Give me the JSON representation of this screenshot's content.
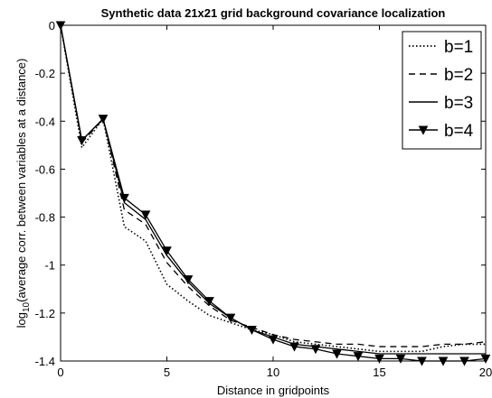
{
  "chart_data": {
    "type": "line",
    "title": "Synthetic data 21x21 grid background covariance localization",
    "xlabel": "Distance in gridpoints",
    "ylabel": "log10(average corr. between variables at a distance)",
    "ylabel_parts": {
      "prefix": "log",
      "sub": "10",
      "suffix": "(average corr. between variables at a distance)"
    },
    "xlim": [
      0,
      20
    ],
    "ylim": [
      -1.4,
      0
    ],
    "x_ticks": [
      0,
      5,
      10,
      15,
      20
    ],
    "x_tick_labels": [
      "0",
      "5",
      "10",
      "15",
      "20"
    ],
    "y_ticks": [
      0,
      -0.2,
      -0.4,
      -0.6,
      -0.8,
      -1,
      -1.2,
      -1.4
    ],
    "y_tick_labels": [
      "0",
      "-0.2",
      "-0.4",
      "-0.6",
      "-0.8",
      "-1",
      "-1.2",
      "-1.4"
    ],
    "grid": false,
    "legend_position": "top-right",
    "x": [
      0,
      1,
      2,
      3,
      4,
      5,
      6,
      7,
      8,
      9,
      10,
      11,
      12,
      13,
      14,
      15,
      16,
      17,
      18,
      19,
      20
    ],
    "series": [
      {
        "name": "b=1",
        "style": "dotted",
        "marker": "none",
        "values": [
          0,
          -0.51,
          -0.39,
          -0.84,
          -0.9,
          -1.08,
          -1.15,
          -1.21,
          -1.24,
          -1.27,
          -1.29,
          -1.32,
          -1.33,
          -1.34,
          -1.35,
          -1.36,
          -1.36,
          -1.36,
          -1.34,
          -1.33,
          -1.33
        ]
      },
      {
        "name": "b=2",
        "style": "dashed",
        "marker": "none",
        "values": [
          0,
          -0.49,
          -0.39,
          -0.77,
          -0.83,
          -0.99,
          -1.09,
          -1.17,
          -1.23,
          -1.26,
          -1.29,
          -1.31,
          -1.32,
          -1.33,
          -1.33,
          -1.34,
          -1.34,
          -1.34,
          -1.33,
          -1.33,
          -1.32
        ]
      },
      {
        "name": "b=3",
        "style": "solid",
        "marker": "none",
        "values": [
          0,
          -0.48,
          -0.39,
          -0.74,
          -0.81,
          -0.96,
          -1.07,
          -1.16,
          -1.22,
          -1.27,
          -1.3,
          -1.33,
          -1.34,
          -1.35,
          -1.36,
          -1.37,
          -1.37,
          -1.37,
          -1.37,
          -1.37,
          -1.37
        ]
      },
      {
        "name": "b=4",
        "style": "solid",
        "marker": "triangle-down",
        "values": [
          0,
          -0.48,
          -0.39,
          -0.72,
          -0.79,
          -0.94,
          -1.06,
          -1.15,
          -1.22,
          -1.27,
          -1.31,
          -1.34,
          -1.35,
          -1.37,
          -1.38,
          -1.39,
          -1.39,
          -1.4,
          -1.4,
          -1.4,
          -1.39
        ]
      }
    ]
  }
}
